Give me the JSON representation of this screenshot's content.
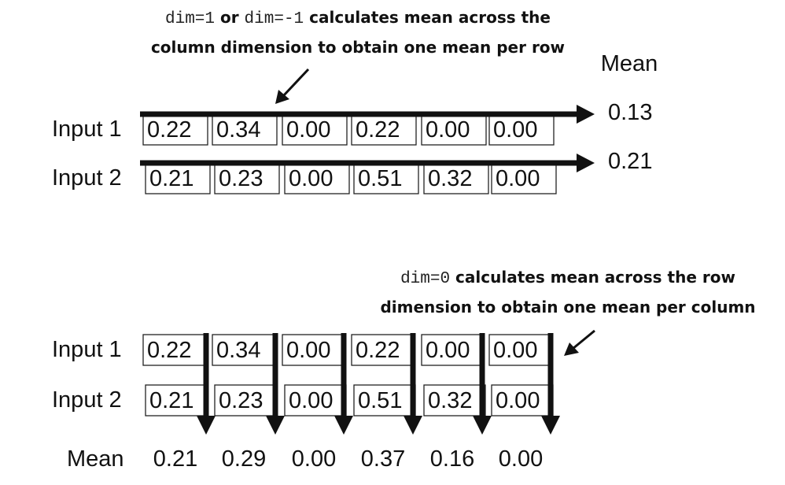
{
  "top": {
    "annotation": {
      "code1": "dim=1",
      "or": " or ",
      "code2": "dim=-1",
      "text1": " calculates mean across the",
      "line2": "column dimension to obtain one mean per row"
    },
    "mean_header": "Mean",
    "rows": [
      {
        "label": "Input 1",
        "values": [
          "0.22",
          "0.34",
          "0.00",
          "0.22",
          "0.00",
          "0.00"
        ],
        "mean": "0.13"
      },
      {
        "label": "Input 2",
        "values": [
          "0.21",
          "0.23",
          "0.00",
          "0.51",
          "0.32",
          "0.00"
        ],
        "mean": "0.21"
      }
    ]
  },
  "bottom": {
    "annotation": {
      "code": "dim=0",
      "text1": " calculates mean across the row",
      "line2": "dimension to obtain one mean per column"
    },
    "rows": [
      {
        "label": "Input 1",
        "values": [
          "0.22",
          "0.34",
          "0.00",
          "0.22",
          "0.00",
          "0.00"
        ]
      },
      {
        "label": "Input 2",
        "values": [
          "0.21",
          "0.23",
          "0.00",
          "0.51",
          "0.32",
          "0.00"
        ]
      }
    ],
    "mean_label": "Mean",
    "means": [
      "0.21",
      "0.29",
      "0.00",
      "0.37",
      "0.16",
      "0.00"
    ]
  }
}
